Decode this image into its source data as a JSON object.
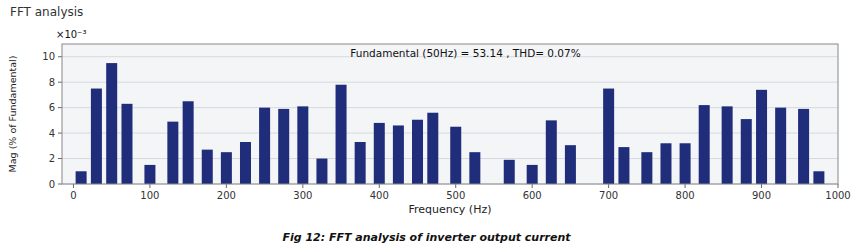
{
  "chart_data": {
    "type": "bar",
    "title": "FFT analysis",
    "x_label": "Frequency (Hz)",
    "y_label": "Mag (% of Fundamental)",
    "annotations": [
      "Fundamental (50Hz) = 53.14 , THD= 0.07%",
      "×10⁻³",
      "Fig 12: FFT analysis of inverter output current"
    ],
    "x": [
      10,
      30,
      50,
      70,
      100,
      130,
      150,
      175,
      200,
      225,
      250,
      275,
      300,
      325,
      350,
      375,
      400,
      425,
      450,
      470,
      500,
      525,
      570,
      600,
      625,
      650,
      700,
      720,
      750,
      775,
      800,
      825,
      855,
      880,
      900,
      925,
      955,
      975
    ],
    "values": [
      0.001,
      0.0075,
      0.0095,
      0.0063,
      0.0015,
      0.0049,
      0.0065,
      0.0027,
      0.0025,
      0.0033,
      0.006,
      0.0059,
      0.0061,
      0.002,
      0.0078,
      0.0033,
      0.0048,
      0.0046,
      0.00505,
      0.0056,
      0.0045,
      0.0025,
      0.0019,
      0.0015,
      0.005,
      0.00305,
      0.0075,
      0.0029,
      0.0025,
      0.0032,
      0.0032,
      0.0062,
      0.0061,
      0.0051,
      0.0074,
      0.006,
      0.0059,
      0.001
    ],
    "color": "#1f2d7b",
    "xlim": [
      -15,
      1000
    ],
    "xticks": [
      0,
      100,
      200,
      300,
      400,
      500,
      600,
      700,
      800,
      900,
      1000
    ],
    "ylim": [
      0,
      0.011
    ],
    "yticks": [
      0,
      {
        "value": 0.002,
        "label": "2"
      },
      {
        "value": 0.004,
        "label": "4"
      },
      {
        "value": 0.006,
        "label": "6"
      },
      {
        "value": 0.008,
        "label": "8"
      },
      {
        "value": 0.01,
        "label": "10"
      }
    ],
    "grid": true
  }
}
